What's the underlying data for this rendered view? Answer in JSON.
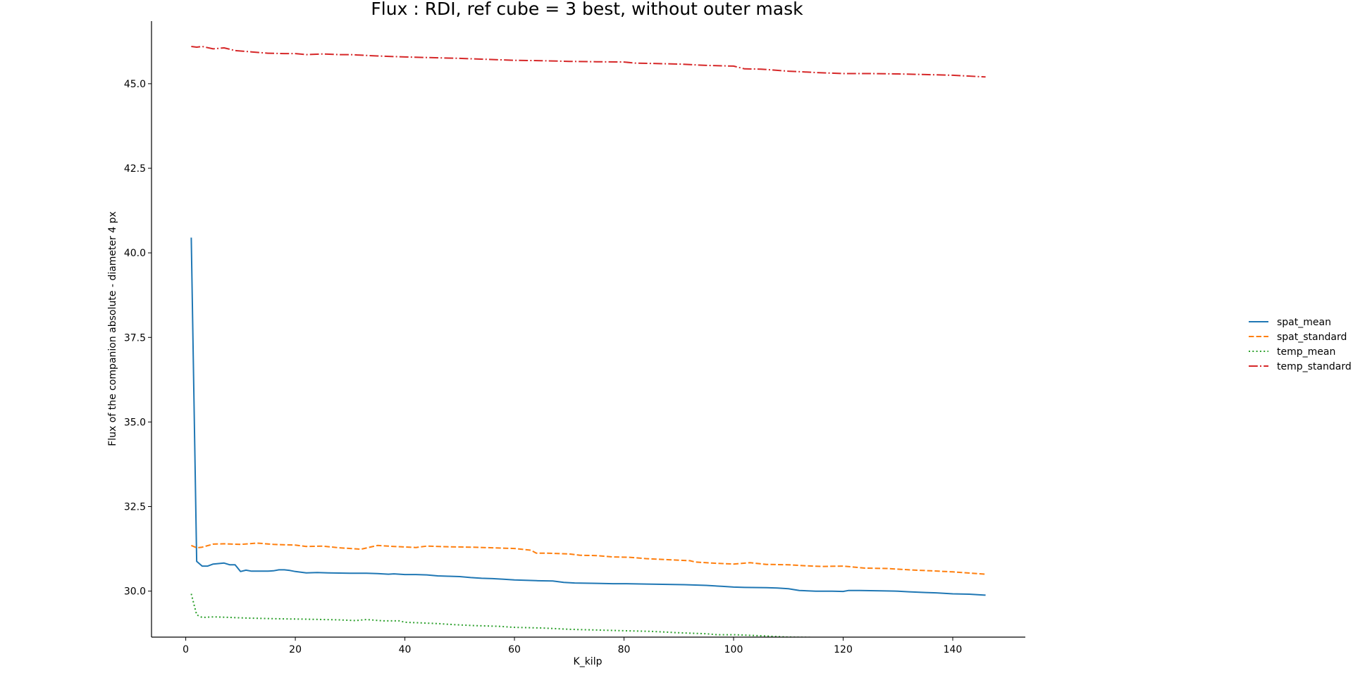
{
  "chart_data": {
    "type": "line",
    "title": "Flux : RDI, ref cube = 3 best, without outer mask",
    "xlabel": "K_kilp",
    "ylabel": "Flux of the companion absolute - diameter 4 px",
    "xlim": [
      -6.25,
      153.25
    ],
    "ylim": [
      28.64,
      46.85
    ],
    "xticks": [
      0,
      20,
      40,
      60,
      80,
      100,
      120,
      140
    ],
    "yticks": [
      30.0,
      32.5,
      35.0,
      37.5,
      40.0,
      42.5,
      45.0
    ],
    "xtick_labels": [
      "0",
      "20",
      "40",
      "60",
      "80",
      "100",
      "120",
      "140"
    ],
    "ytick_labels": [
      "30.0",
      "32.5",
      "35.0",
      "37.5",
      "40.0",
      "42.5",
      "45.0"
    ],
    "grid": false,
    "legend_position": "center-right outside",
    "series": [
      {
        "name": "spat_mean",
        "color": "#1f77b4",
        "dash": "solid",
        "x": [
          1,
          2,
          3,
          4,
          5,
          7,
          8,
          9,
          10,
          11,
          12,
          15,
          16,
          17,
          18,
          19,
          20,
          22,
          24,
          26,
          30,
          33,
          35,
          37,
          38,
          40,
          42,
          44,
          46,
          48,
          50,
          52,
          54,
          56,
          58,
          60,
          62,
          64,
          67,
          69,
          71,
          75,
          78,
          80,
          84,
          87,
          91,
          95,
          98,
          100,
          102,
          106,
          108,
          110,
          112,
          115,
          118,
          120,
          121,
          123,
          127,
          130,
          132,
          135,
          137,
          140,
          143,
          146
        ],
        "y": [
          40.45,
          30.88,
          30.74,
          30.74,
          30.8,
          30.83,
          30.78,
          30.78,
          30.58,
          30.62,
          30.59,
          30.59,
          30.6,
          30.63,
          30.63,
          30.61,
          30.58,
          30.54,
          30.55,
          30.54,
          30.53,
          30.53,
          30.52,
          30.5,
          30.51,
          30.49,
          30.49,
          30.48,
          30.45,
          30.44,
          30.43,
          30.4,
          30.38,
          30.37,
          30.35,
          30.33,
          30.32,
          30.31,
          30.3,
          30.26,
          30.24,
          30.23,
          30.22,
          30.22,
          30.21,
          30.2,
          30.19,
          30.17,
          30.14,
          30.12,
          30.11,
          30.1,
          30.09,
          30.07,
          30.02,
          30.0,
          30.0,
          29.99,
          30.02,
          30.02,
          30.01,
          30.0,
          29.98,
          29.96,
          29.95,
          29.92,
          29.91,
          29.88
        ]
      },
      {
        "name": "spat_standard",
        "color": "#ff7f0e",
        "dash": "dashed",
        "x": [
          1,
          2,
          3,
          5,
          7,
          10,
          13,
          16,
          20,
          22,
          25,
          28,
          32,
          35,
          38,
          42,
          44,
          48,
          52,
          56,
          60,
          63,
          64,
          66,
          70,
          72,
          75,
          78,
          81,
          84,
          88,
          92,
          93,
          96,
          100,
          103,
          106,
          110,
          113,
          116,
          120,
          124,
          128,
          132,
          136,
          140,
          146
        ],
        "y": [
          31.35,
          31.28,
          31.3,
          31.39,
          31.4,
          31.38,
          31.42,
          31.38,
          31.36,
          31.32,
          31.33,
          31.28,
          31.24,
          31.35,
          31.32,
          31.29,
          31.33,
          31.31,
          31.3,
          31.28,
          31.26,
          31.21,
          31.12,
          31.12,
          31.1,
          31.06,
          31.05,
          31.01,
          31.0,
          30.96,
          30.93,
          30.9,
          30.86,
          30.83,
          30.8,
          30.84,
          30.79,
          30.78,
          30.75,
          30.73,
          30.74,
          30.68,
          30.67,
          30.63,
          30.6,
          30.57,
          30.5
        ]
      },
      {
        "name": "temp_mean",
        "color": "#2ca02c",
        "dash": "dotted",
        "x": [
          1,
          2,
          3,
          5,
          7,
          10,
          12,
          15,
          18,
          22,
          25,
          28,
          31,
          33,
          36,
          39,
          40,
          43,
          46,
          50,
          53,
          57,
          60,
          65,
          70,
          75,
          80,
          85,
          90,
          95,
          97,
          100,
          102,
          105,
          110,
          115,
          118,
          120,
          125,
          130,
          135,
          140,
          141,
          146
        ],
        "y": [
          29.92,
          29.3,
          29.22,
          29.24,
          29.23,
          29.21,
          29.2,
          29.19,
          29.18,
          29.17,
          29.16,
          29.15,
          29.13,
          29.16,
          29.12,
          29.12,
          29.08,
          29.06,
          29.04,
          29.0,
          28.98,
          28.96,
          28.93,
          28.91,
          28.87,
          28.85,
          28.83,
          28.81,
          28.77,
          28.74,
          28.71,
          28.71,
          28.7,
          28.68,
          28.64,
          28.63,
          28.62,
          28.62,
          28.63,
          28.61,
          28.61,
          28.59,
          28.56,
          28.56
        ]
      },
      {
        "name": "temp_standard",
        "color": "#d62728",
        "dash": "dashdot",
        "x": [
          1,
          2,
          3,
          5,
          7,
          9,
          12,
          15,
          18,
          20,
          22,
          25,
          28,
          30,
          35,
          40,
          45,
          50,
          55,
          60,
          65,
          70,
          75,
          80,
          82,
          90,
          95,
          100,
          102,
          105,
          110,
          115,
          120,
          125,
          130,
          135,
          140,
          146
        ],
        "y": [
          46.1,
          46.08,
          46.1,
          46.03,
          46.06,
          45.98,
          45.94,
          45.9,
          45.89,
          45.89,
          45.86,
          45.88,
          45.86,
          45.86,
          45.82,
          45.79,
          45.77,
          45.75,
          45.72,
          45.69,
          45.68,
          45.66,
          45.65,
          45.64,
          45.61,
          45.58,
          45.54,
          45.52,
          45.44,
          45.43,
          45.37,
          45.33,
          45.3,
          45.3,
          45.29,
          45.27,
          45.25,
          45.2
        ]
      }
    ]
  }
}
